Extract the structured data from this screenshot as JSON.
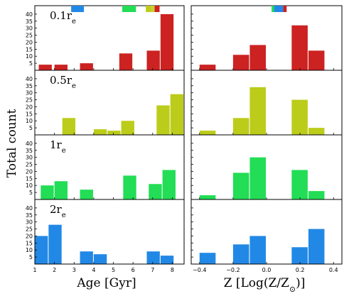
{
  "chart_data": {
    "type": "bar",
    "ylabel": "Total count",
    "rows": [
      {
        "label": "0.1r",
        "label_sub": "e",
        "color": "#cc2222"
      },
      {
        "label": "0.5r",
        "label_sub": "e",
        "color": "#bccc1a"
      },
      {
        "label": "1r",
        "label_sub": "e",
        "color": "#22dd55"
      },
      {
        "label": "2r",
        "label_sub": "e",
        "color": "#2288e6"
      }
    ],
    "y_ticks": [
      5,
      10,
      15,
      20,
      25,
      30,
      35,
      40
    ],
    "ylim": [
      0,
      44
    ],
    "left_column": {
      "xlabel": "Age [Gyr]",
      "xlim": [
        1,
        8.6
      ],
      "x_ticks": [
        "1",
        "2",
        "3",
        "4",
        "5",
        "6",
        "7",
        "8"
      ],
      "bin_width": 0.7,
      "bins": [
        [
          {
            "x0": 1.2,
            "y": 4
          },
          {
            "x0": 2.0,
            "y": 4
          },
          {
            "x0": 3.3,
            "y": 5
          },
          {
            "x0": 5.3,
            "y": 12
          },
          {
            "x0": 6.7,
            "y": 14
          },
          {
            "x0": 7.4,
            "y": 40
          }
        ],
        [
          {
            "x0": 2.4,
            "y": 12
          },
          {
            "x0": 4.0,
            "y": 4
          },
          {
            "x0": 4.7,
            "y": 3
          },
          {
            "x0": 5.4,
            "y": 10
          },
          {
            "x0": 7.2,
            "y": 21
          },
          {
            "x0": 7.9,
            "y": 29
          }
        ],
        [
          {
            "x0": 1.3,
            "y": 10
          },
          {
            "x0": 2.0,
            "y": 13
          },
          {
            "x0": 3.3,
            "y": 7
          },
          {
            "x0": 5.5,
            "y": 17
          },
          {
            "x0": 6.8,
            "y": 11
          },
          {
            "x0": 7.5,
            "y": 21
          }
        ],
        [
          {
            "x0": 1.0,
            "y": 20
          },
          {
            "x0": 1.7,
            "y": 28
          },
          {
            "x0": 3.3,
            "y": 9
          },
          {
            "x0": 4.0,
            "y": 7
          },
          {
            "x0": 6.7,
            "y": 9
          },
          {
            "x0": 7.4,
            "y": 6
          }
        ]
      ],
      "top_markers": [
        {
          "x0": 2.85,
          "x1": 3.5,
          "color": "#2288e6"
        },
        {
          "x0": 5.45,
          "x1": 6.15,
          "color": "#22dd55"
        },
        {
          "x0": 6.65,
          "x1": 6.9,
          "color": "#bccc1a"
        },
        {
          "x0": 6.9,
          "x1": 7.1,
          "color": "#cccc33"
        },
        {
          "x0": 7.1,
          "x1": 7.35,
          "color": "#cc2222"
        }
      ]
    },
    "right_column": {
      "xlabel": "Z [Log(Z/Z",
      "xlabel_sub": "⊙",
      "xlabel_end": ")]",
      "xlim": [
        -0.45,
        0.45
      ],
      "x_ticks": [
        "−0.4",
        "−0.2",
        "0.0",
        "0.2",
        "0.4"
      ],
      "x_tick_values": [
        -0.4,
        -0.2,
        0.0,
        0.2,
        0.4
      ],
      "bin_width": 0.1,
      "bins": [
        [
          {
            "x0": -0.4,
            "y": 4
          },
          {
            "x0": -0.2,
            "y": 11
          },
          {
            "x0": -0.1,
            "y": 18
          },
          {
            "x0": 0.15,
            "y": 32
          },
          {
            "x0": 0.25,
            "y": 14
          }
        ],
        [
          {
            "x0": -0.4,
            "y": 3
          },
          {
            "x0": -0.2,
            "y": 12
          },
          {
            "x0": -0.1,
            "y": 34
          },
          {
            "x0": 0.15,
            "y": 25
          },
          {
            "x0": 0.25,
            "y": 5
          }
        ],
        [
          {
            "x0": -0.4,
            "y": 3
          },
          {
            "x0": -0.2,
            "y": 19
          },
          {
            "x0": -0.1,
            "y": 30
          },
          {
            "x0": 0.15,
            "y": 21
          },
          {
            "x0": 0.25,
            "y": 6
          }
        ],
        [
          {
            "x0": -0.4,
            "y": 8
          },
          {
            "x0": -0.2,
            "y": 14
          },
          {
            "x0": -0.1,
            "y": 20
          },
          {
            "x0": 0.15,
            "y": 12
          },
          {
            "x0": 0.25,
            "y": 25
          }
        ]
      ],
      "top_markers": [
        {
          "x0": 0.04,
          "x1": 0.065,
          "color": "#bccc1a"
        },
        {
          "x0": 0.03,
          "x1": 0.06,
          "color": "#22dd55"
        },
        {
          "x0": 0.045,
          "x1": 0.1,
          "color": "#2288e6"
        },
        {
          "x0": 0.1,
          "x1": 0.12,
          "color": "#cc2222"
        }
      ]
    }
  }
}
